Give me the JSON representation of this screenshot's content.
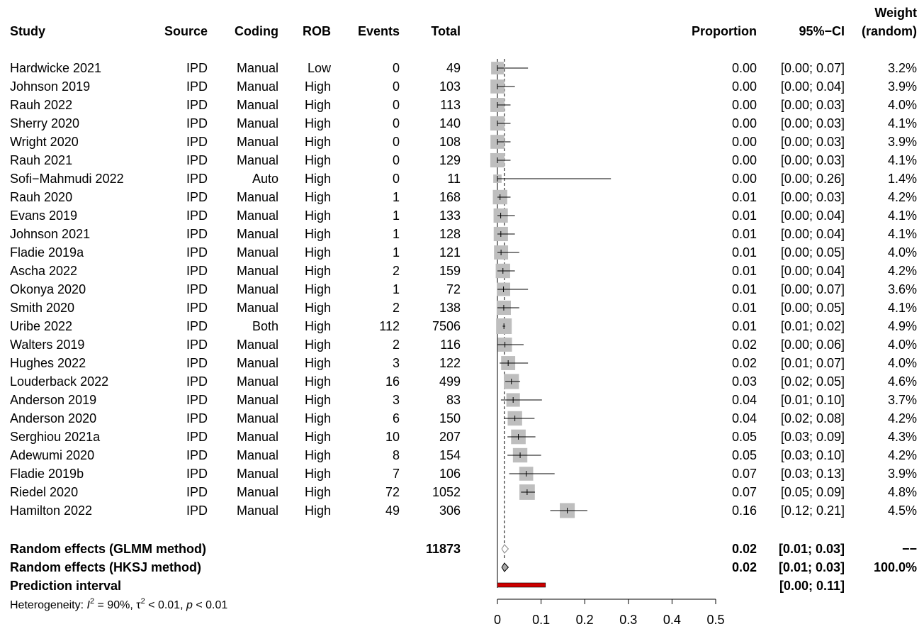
{
  "chart_data": {
    "type": "forest",
    "headers": {
      "study": "Study",
      "source": "Source",
      "coding": "Coding",
      "rob": "ROB",
      "events": "Events",
      "total": "Total",
      "proportion": "Proportion",
      "ci": "95%−CI",
      "weight_top": "Weight",
      "weight_bottom": "(random)"
    },
    "xaxis": {
      "ticks": [
        0,
        0.1,
        0.2,
        0.3,
        0.4,
        0.5
      ],
      "tick_labels": [
        "0",
        "0.1",
        "0.2",
        "0.3",
        "0.4",
        "0.5"
      ],
      "xlim": [
        0,
        0.5
      ]
    },
    "studies": [
      {
        "study": "Hardwicke 2021",
        "source": "IPD",
        "coding": "Manual",
        "rob": "Low",
        "events": "0",
        "total": "49",
        "proportion": "0.00",
        "ci": "[0.00; 0.07]",
        "weight": "3.2%",
        "est": 0.0,
        "lower": 0.0,
        "upper": 0.07,
        "w": 3.2
      },
      {
        "study": "Johnson 2019",
        "source": "IPD",
        "coding": "Manual",
        "rob": "High",
        "events": "0",
        "total": "103",
        "proportion": "0.00",
        "ci": "[0.00; 0.04]",
        "weight": "3.9%",
        "est": 0.0,
        "lower": 0.0,
        "upper": 0.04,
        "w": 3.9
      },
      {
        "study": "Rauh 2022",
        "source": "IPD",
        "coding": "Manual",
        "rob": "High",
        "events": "0",
        "total": "113",
        "proportion": "0.00",
        "ci": "[0.00; 0.03]",
        "weight": "4.0%",
        "est": 0.0,
        "lower": 0.0,
        "upper": 0.03,
        "w": 4.0
      },
      {
        "study": "Sherry 2020",
        "source": "IPD",
        "coding": "Manual",
        "rob": "High",
        "events": "0",
        "total": "140",
        "proportion": "0.00",
        "ci": "[0.00; 0.03]",
        "weight": "4.1%",
        "est": 0.0,
        "lower": 0.0,
        "upper": 0.03,
        "w": 4.1
      },
      {
        "study": "Wright 2020",
        "source": "IPD",
        "coding": "Manual",
        "rob": "High",
        "events": "0",
        "total": "108",
        "proportion": "0.00",
        "ci": "[0.00; 0.03]",
        "weight": "3.9%",
        "est": 0.0,
        "lower": 0.0,
        "upper": 0.03,
        "w": 3.9
      },
      {
        "study": "Rauh 2021",
        "source": "IPD",
        "coding": "Manual",
        "rob": "High",
        "events": "0",
        "total": "129",
        "proportion": "0.00",
        "ci": "[0.00; 0.03]",
        "weight": "4.1%",
        "est": 0.0,
        "lower": 0.0,
        "upper": 0.03,
        "w": 4.1
      },
      {
        "study": "Sofi−Mahmudi 2022",
        "source": "IPD",
        "coding": "Auto",
        "rob": "High",
        "events": "0",
        "total": "11",
        "proportion": "0.00",
        "ci": "[0.00; 0.26]",
        "weight": "1.4%",
        "est": 0.0,
        "lower": 0.0,
        "upper": 0.26,
        "w": 1.4
      },
      {
        "study": "Rauh 2020",
        "source": "IPD",
        "coding": "Manual",
        "rob": "High",
        "events": "1",
        "total": "168",
        "proportion": "0.01",
        "ci": "[0.00; 0.03]",
        "weight": "4.2%",
        "est": 0.006,
        "lower": 0.0,
        "upper": 0.03,
        "w": 4.2
      },
      {
        "study": "Evans 2019",
        "source": "IPD",
        "coding": "Manual",
        "rob": "High",
        "events": "1",
        "total": "133",
        "proportion": "0.01",
        "ci": "[0.00; 0.04]",
        "weight": "4.1%",
        "est": 0.0075,
        "lower": 0.0,
        "upper": 0.04,
        "w": 4.1
      },
      {
        "study": "Johnson 2021",
        "source": "IPD",
        "coding": "Manual",
        "rob": "High",
        "events": "1",
        "total": "128",
        "proportion": "0.01",
        "ci": "[0.00; 0.04]",
        "weight": "4.1%",
        "est": 0.0078,
        "lower": 0.0,
        "upper": 0.04,
        "w": 4.1
      },
      {
        "study": "Fladie 2019a",
        "source": "IPD",
        "coding": "Manual",
        "rob": "High",
        "events": "1",
        "total": "121",
        "proportion": "0.01",
        "ci": "[0.00; 0.05]",
        "weight": "4.0%",
        "est": 0.0083,
        "lower": 0.0,
        "upper": 0.05,
        "w": 4.0
      },
      {
        "study": "Ascha 2022",
        "source": "IPD",
        "coding": "Manual",
        "rob": "High",
        "events": "2",
        "total": "159",
        "proportion": "0.01",
        "ci": "[0.00; 0.04]",
        "weight": "4.2%",
        "est": 0.0126,
        "lower": 0.0,
        "upper": 0.04,
        "w": 4.2
      },
      {
        "study": "Okonya 2020",
        "source": "IPD",
        "coding": "Manual",
        "rob": "High",
        "events": "1",
        "total": "72",
        "proportion": "0.01",
        "ci": "[0.00; 0.07]",
        "weight": "3.6%",
        "est": 0.0139,
        "lower": 0.0,
        "upper": 0.07,
        "w": 3.6
      },
      {
        "study": "Smith 2020",
        "source": "IPD",
        "coding": "Manual",
        "rob": "High",
        "events": "2",
        "total": "138",
        "proportion": "0.01",
        "ci": "[0.00; 0.05]",
        "weight": "4.1%",
        "est": 0.0145,
        "lower": 0.0,
        "upper": 0.05,
        "w": 4.1
      },
      {
        "study": "Uribe 2022",
        "source": "IPD",
        "coding": "Both",
        "rob": "High",
        "events": "112",
        "total": "7506",
        "proportion": "0.01",
        "ci": "[0.01; 0.02]",
        "weight": "4.9%",
        "est": 0.0149,
        "lower": 0.012,
        "upper": 0.018,
        "w": 4.9
      },
      {
        "study": "Walters 2019",
        "source": "IPD",
        "coding": "Manual",
        "rob": "High",
        "events": "2",
        "total": "116",
        "proportion": "0.02",
        "ci": "[0.00; 0.06]",
        "weight": "4.0%",
        "est": 0.0172,
        "lower": 0.0,
        "upper": 0.06,
        "w": 4.0
      },
      {
        "study": "Hughes 2022",
        "source": "IPD",
        "coding": "Manual",
        "rob": "High",
        "events": "3",
        "total": "122",
        "proportion": "0.02",
        "ci": "[0.01; 0.07]",
        "weight": "4.0%",
        "est": 0.0246,
        "lower": 0.005,
        "upper": 0.07,
        "w": 4.0
      },
      {
        "study": "Louderback 2022",
        "source": "IPD",
        "coding": "Manual",
        "rob": "High",
        "events": "16",
        "total": "499",
        "proportion": "0.03",
        "ci": "[0.02; 0.05]",
        "weight": "4.6%",
        "est": 0.032,
        "lower": 0.018,
        "upper": 0.052,
        "w": 4.6
      },
      {
        "study": "Anderson 2019",
        "source": "IPD",
        "coding": "Manual",
        "rob": "High",
        "events": "3",
        "total": "83",
        "proportion": "0.04",
        "ci": "[0.01; 0.10]",
        "weight": "3.7%",
        "est": 0.036,
        "lower": 0.008,
        "upper": 0.102,
        "w": 3.7
      },
      {
        "study": "Anderson 2020",
        "source": "IPD",
        "coding": "Manual",
        "rob": "High",
        "events": "6",
        "total": "150",
        "proportion": "0.04",
        "ci": "[0.02; 0.08]",
        "weight": "4.2%",
        "est": 0.04,
        "lower": 0.015,
        "upper": 0.085,
        "w": 4.2
      },
      {
        "study": "Serghiou 2021a",
        "source": "IPD",
        "coding": "Manual",
        "rob": "High",
        "events": "10",
        "total": "207",
        "proportion": "0.05",
        "ci": "[0.03; 0.09]",
        "weight": "4.3%",
        "est": 0.048,
        "lower": 0.023,
        "upper": 0.087,
        "w": 4.3
      },
      {
        "study": "Adewumi 2020",
        "source": "IPD",
        "coding": "Manual",
        "rob": "High",
        "events": "8",
        "total": "154",
        "proportion": "0.05",
        "ci": "[0.03; 0.10]",
        "weight": "4.2%",
        "est": 0.052,
        "lower": 0.023,
        "upper": 0.1,
        "w": 4.2
      },
      {
        "study": "Fladie 2019b",
        "source": "IPD",
        "coding": "Manual",
        "rob": "High",
        "events": "7",
        "total": "106",
        "proportion": "0.07",
        "ci": "[0.03; 0.13]",
        "weight": "3.9%",
        "est": 0.066,
        "lower": 0.027,
        "upper": 0.131,
        "w": 3.9
      },
      {
        "study": "Riedel 2020",
        "source": "IPD",
        "coding": "Manual",
        "rob": "High",
        "events": "72",
        "total": "1052",
        "proportion": "0.07",
        "ci": "[0.05; 0.09]",
        "weight": "4.8%",
        "est": 0.068,
        "lower": 0.054,
        "upper": 0.086,
        "w": 4.8
      },
      {
        "study": "Hamilton 2022",
        "source": "IPD",
        "coding": "Manual",
        "rob": "High",
        "events": "49",
        "total": "306",
        "proportion": "0.16",
        "ci": "[0.12; 0.21]",
        "weight": "4.5%",
        "est": 0.16,
        "lower": 0.121,
        "upper": 0.206,
        "w": 4.5
      }
    ],
    "pooled": [
      {
        "label": "Random effects (GLMM method)",
        "total": "11873",
        "proportion": "0.02",
        "ci": "[0.01; 0.03]",
        "weight": "−−",
        "est": 0.016,
        "lower": 0.01,
        "upper": 0.025,
        "filled": false
      },
      {
        "label": "Random effects (HKSJ method)",
        "total": "",
        "proportion": "0.02",
        "ci": "[0.01; 0.03]",
        "weight": "100.0%",
        "est": 0.016,
        "lower": 0.01,
        "upper": 0.025,
        "filled": true
      }
    ],
    "prediction": {
      "label": "Prediction interval",
      "ci": "[0.00; 0.11]",
      "lower": 0.0,
      "upper": 0.11,
      "color": "#cc0000"
    },
    "heterogeneity": {
      "prefix": "Heterogeneity: ",
      "i2_symbol": "I",
      "i2_value": " = 90%, ",
      "tau_symbol": "τ",
      "tau_value": " < 0.01, ",
      "p_symbol": "p",
      "p_value": " < 0.01",
      "superscript": "2"
    },
    "reference_line": 0.016,
    "colors": {
      "square": "#bebebe",
      "pred_fill": "#cc0000",
      "pooled_fill": "#a8a8a8"
    }
  }
}
